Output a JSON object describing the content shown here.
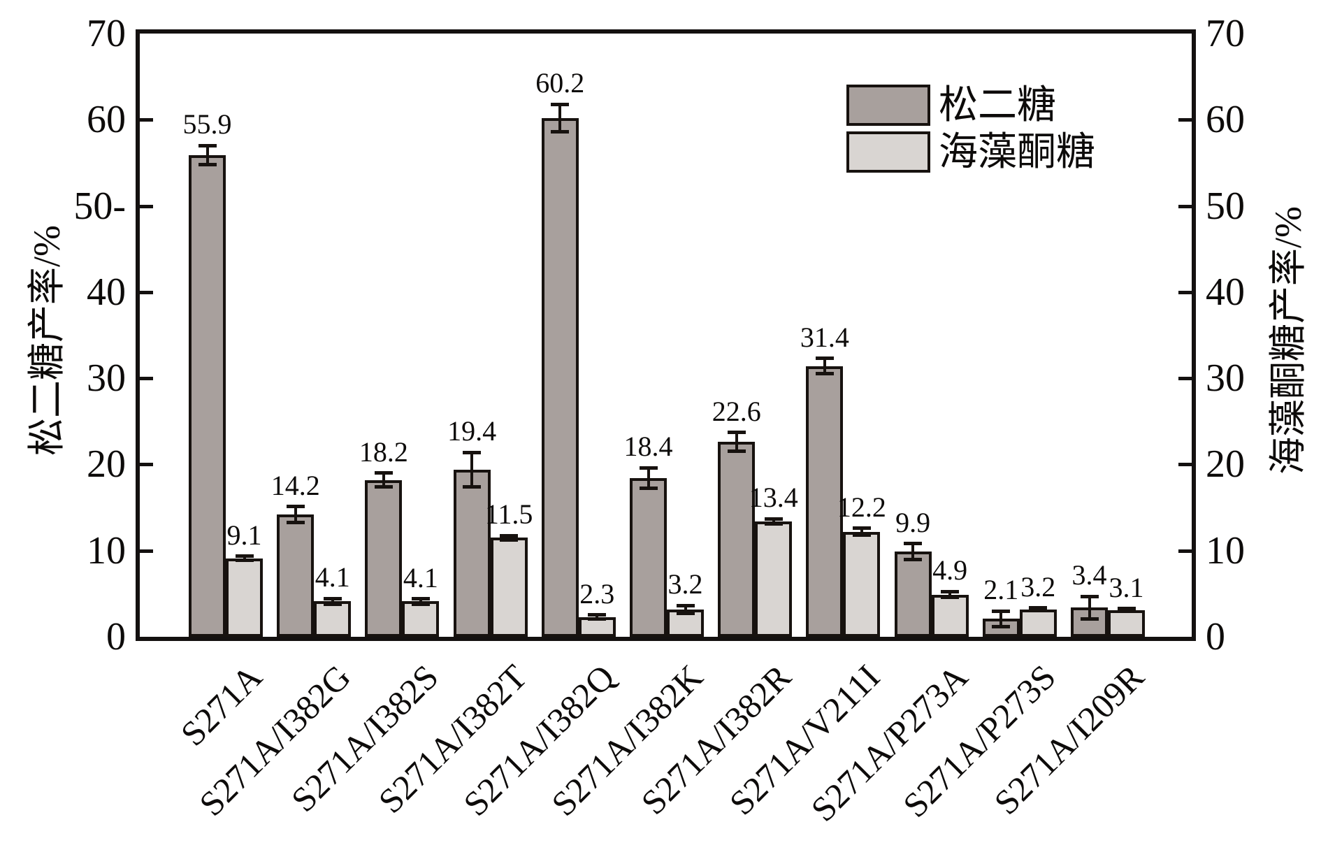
{
  "chart_data": {
    "type": "bar",
    "categories": [
      "S271A",
      "S271A/I382G",
      "S271A/I382S",
      "S271A/I382T",
      "S271A/I382Q",
      "S271A/I382K",
      "S271A/I382R",
      "S271A/V211I",
      "S271A/P273A",
      "S271A/P273S",
      "S271A/I209R"
    ],
    "series": [
      {
        "key": "turanose",
        "name": "松二糖",
        "color": "#a8a09d",
        "values": [
          55.9,
          14.2,
          18.2,
          19.4,
          60.2,
          18.4,
          22.6,
          31.4,
          9.9,
          2.1,
          3.4
        ],
        "errors": [
          1.1,
          0.9,
          0.8,
          2.0,
          1.6,
          1.2,
          1.1,
          0.9,
          0.9,
          0.9,
          1.3
        ]
      },
      {
        "key": "trehalulose",
        "name": "海藻酮糖",
        "color": "#d9d5d2",
        "values": [
          9.1,
          4.1,
          4.1,
          11.5,
          2.3,
          3.2,
          13.4,
          12.2,
          4.9,
          3.2,
          3.1
        ],
        "errors": [
          0.25,
          0.35,
          0.3,
          0.25,
          0.25,
          0.45,
          0.3,
          0.4,
          0.35,
          0.15,
          0.15
        ]
      }
    ],
    "left_axis": {
      "title": "松二糖产率/%",
      "tick_values": [
        70,
        60,
        50,
        40,
        30,
        20,
        10,
        0
      ],
      "tick_labels": [
        "70",
        "60",
        "50-",
        "40",
        "30",
        "20",
        "10",
        "0"
      ],
      "range": [
        0,
        70
      ]
    },
    "right_axis": {
      "title": "海藻酮糖产率/%",
      "tick_values": [
        70,
        60,
        50,
        40,
        30,
        20,
        10,
        0
      ],
      "tick_labels": [
        "70",
        "60",
        "50",
        "40",
        "30",
        "20",
        "10",
        "0"
      ],
      "range": [
        0,
        70
      ]
    },
    "legend": {
      "position": "top-right-inside",
      "items": [
        {
          "label": "松二糖",
          "color": "#a8a09d"
        },
        {
          "label": "海藻酮糖",
          "color": "#d9d5d2"
        }
      ]
    },
    "grid": false,
    "bar_value_labels_decimals": 1
  },
  "style": {
    "axis_color": "#141110",
    "bar_border_color": "#17120f",
    "text_color": "#0d0b0a",
    "background": "#ffffff"
  }
}
